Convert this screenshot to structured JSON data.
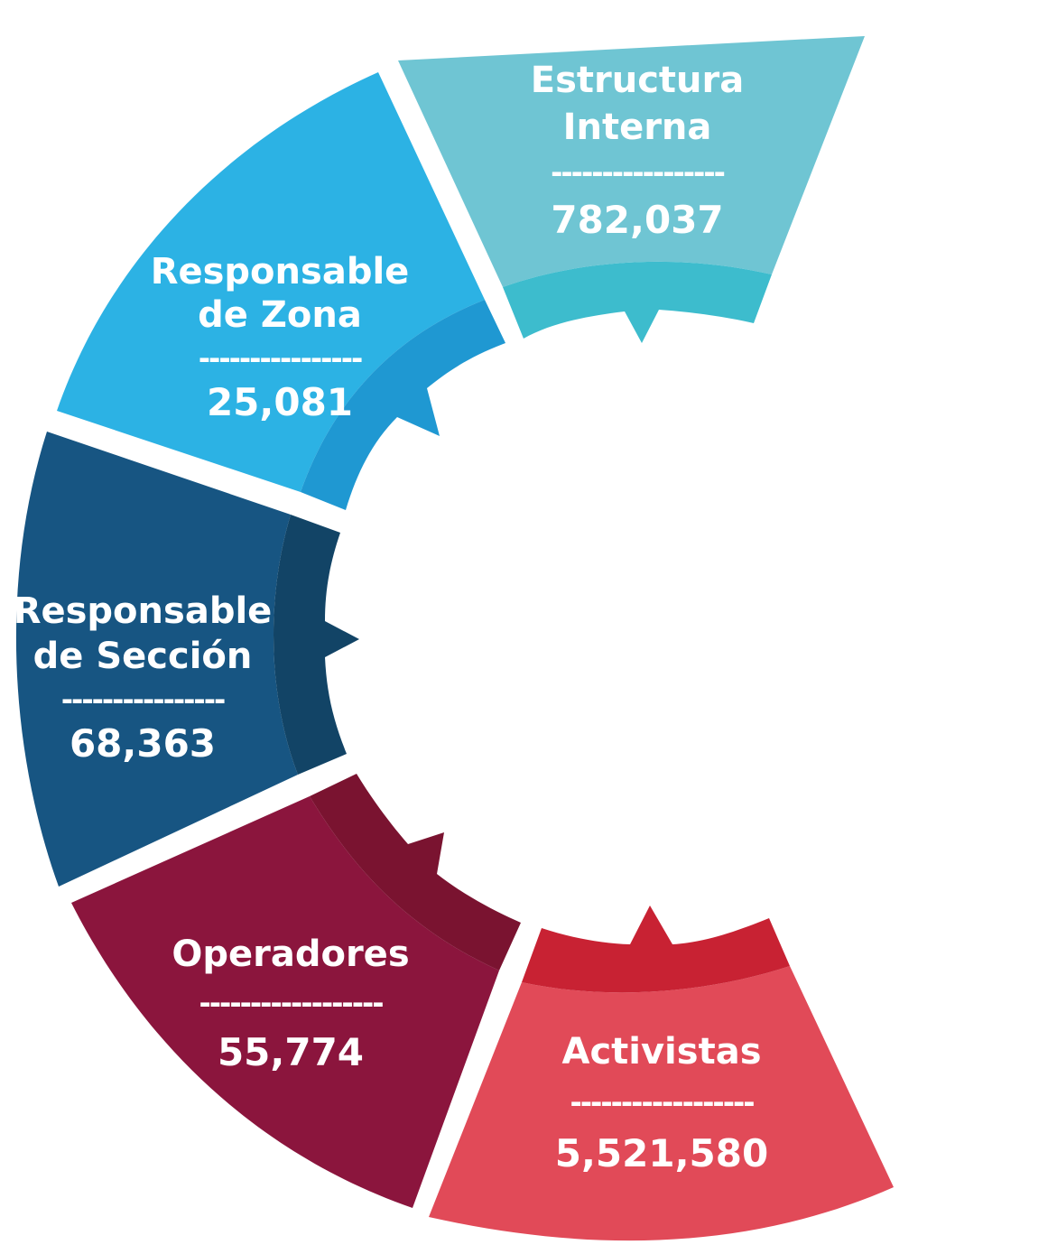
{
  "segments": [
    {
      "id": "estructura-interna",
      "title_lines": [
        "Estructura",
        "Interna"
      ],
      "dashes": "-----------------",
      "value": "782,037",
      "colors": {
        "main": "#6fc5d3",
        "band": "#3dbccd"
      }
    },
    {
      "id": "responsable-de-zona",
      "title_lines": [
        "Responsable",
        "de Zona"
      ],
      "dashes": "----------------",
      "value": "25,081",
      "colors": {
        "main": "#2cb2e4",
        "band": "#1f98d2"
      }
    },
    {
      "id": "responsable-de-seccion",
      "title_lines": [
        "Responsable",
        "de Sección"
      ],
      "dashes": "----------------",
      "value": "68,363",
      "colors": {
        "main": "#175582",
        "band": "#124466"
      }
    },
    {
      "id": "operadores",
      "title_lines": [
        "Operadores",
        ""
      ],
      "dashes": "------------------",
      "value": "55,774",
      "colors": {
        "main": "#8b153d",
        "band": "#7a1330"
      }
    },
    {
      "id": "activistas",
      "title_lines": [
        "Activistas",
        ""
      ],
      "dashes": "------------------",
      "value": "5,521,580",
      "colors": {
        "main": "#e14a58",
        "band": "#c82233"
      }
    }
  ]
}
